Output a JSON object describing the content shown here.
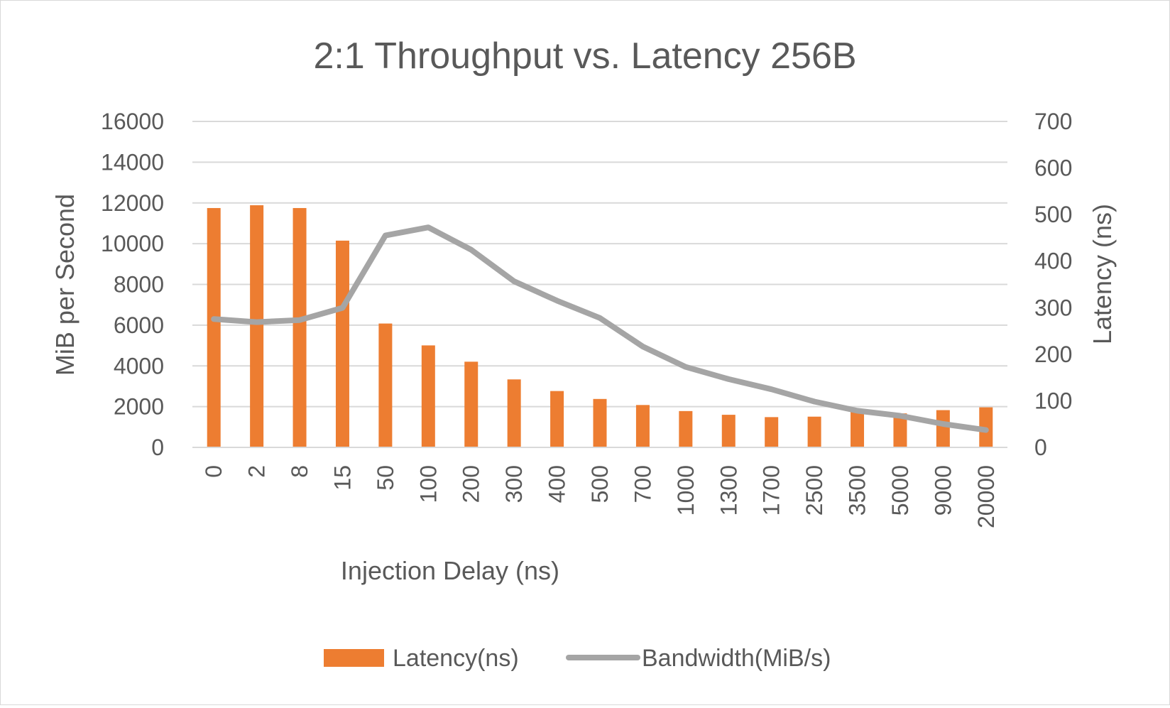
{
  "chart_data": {
    "type": "bar",
    "title": "2:1 Throughput vs. Latency 256B",
    "xlabel": "Injection Delay (ns)",
    "ylabel": "MiB per Second",
    "y2label": "Latency (ns)",
    "categories": [
      "0",
      "2",
      "8",
      "15",
      "50",
      "100",
      "200",
      "300",
      "400",
      "500",
      "700",
      "1000",
      "1300",
      "1700",
      "2500",
      "3500",
      "5000",
      "9000",
      "20000"
    ],
    "ylim": [
      0,
      16000
    ],
    "yticks": [
      "0",
      "2000",
      "4000",
      "6000",
      "8000",
      "10000",
      "12000",
      "14000",
      "16000"
    ],
    "y2lim": [
      0,
      700
    ],
    "y2ticks": [
      "0",
      "100",
      "200",
      "300",
      "400",
      "500",
      "600",
      "700"
    ],
    "grid": true,
    "legend_position": "bottom",
    "series": [
      {
        "name": "Latency(ns)",
        "type": "bar",
        "axis": "right",
        "color": "#ed7d31",
        "values": [
          514,
          520,
          514,
          444,
          266,
          219,
          184,
          146,
          121,
          104,
          91,
          78,
          70,
          65,
          66,
          78,
          73,
          80,
          86
        ]
      },
      {
        "name": "Bandwidth(MiB/s)",
        "type": "line",
        "axis": "left",
        "color": "#a5a5a5",
        "values": [
          6300,
          6150,
          6250,
          6850,
          10400,
          10800,
          9700,
          8150,
          7200,
          6350,
          4950,
          3950,
          3350,
          2850,
          2250,
          1800,
          1550,
          1150,
          850
        ]
      }
    ]
  }
}
